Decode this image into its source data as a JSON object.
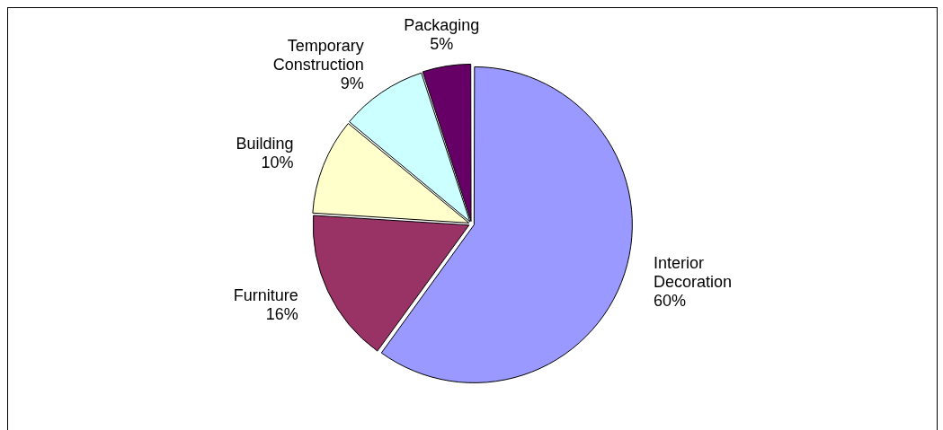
{
  "chart_data": {
    "type": "pie",
    "categories": [
      "Interior Decoration",
      "Furniture",
      "Building",
      "Temporary Construction",
      "Packaging"
    ],
    "values": [
      60,
      16,
      10,
      9,
      5
    ],
    "value_labels": [
      "60%",
      "16%",
      "10%",
      "9%",
      "5%"
    ],
    "colors": [
      "#9999ff",
      "#993366",
      "#ffffcc",
      "#ccffff",
      "#660066"
    ],
    "legend": false
  }
}
